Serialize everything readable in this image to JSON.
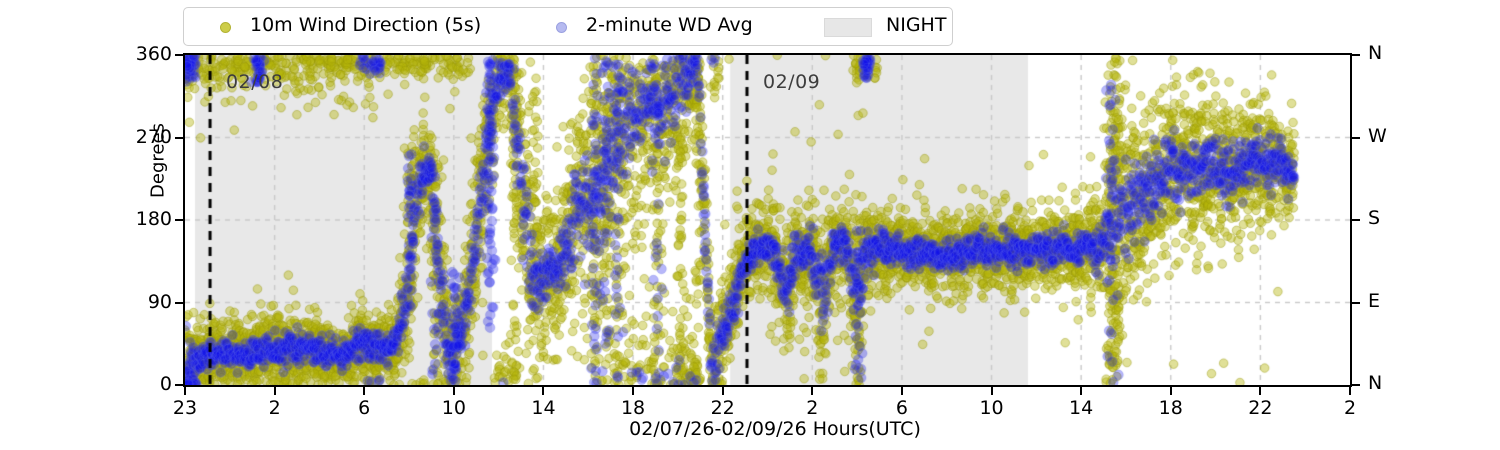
{
  "chart_data": {
    "type": "scatter",
    "xlabel": "02/07/26-02/09/26  Hours(UTC)",
    "ylabel": "Degrees",
    "ylim": [
      0,
      360
    ],
    "yticks": [
      0,
      90,
      180,
      270,
      360
    ],
    "right_axis_labels": [
      {
        "value": 360,
        "label": "N"
      },
      {
        "value": 270,
        "label": "W"
      },
      {
        "value": 180,
        "label": "S"
      },
      {
        "value": 90,
        "label": "E"
      },
      {
        "value": 0,
        "label": "N"
      }
    ],
    "xtick_labels": [
      "23",
      "2",
      "6",
      "10",
      "14",
      "18",
      "22",
      "2",
      "6",
      "10",
      "14",
      "18",
      "22",
      "2"
    ],
    "grid": true,
    "grid_color": "#c9c9c9",
    "night_color": "#e8e8e8",
    "legend": [
      {
        "label": "10m Wind Direction (5s)",
        "marker_color": "#cdcd4a",
        "type": "scatter"
      },
      {
        "label": "2-minute WD Avg",
        "marker_color": "#b6baf0",
        "type": "scatter"
      },
      {
        "label": "NIGHT",
        "patch_color": "#e7e7e7",
        "type": "patch"
      }
    ],
    "night_regions": [
      {
        "x0": 0.0086,
        "x1": 0.2635
      },
      {
        "x0": 0.468,
        "x1": 0.7236
      }
    ],
    "day_markers": [
      {
        "x": 0.0215,
        "label": "02/08"
      },
      {
        "x": 0.4824,
        "label": "02/09"
      }
    ],
    "x_end": 0.952,
    "series": [
      {
        "name": "10m Wind Direction (5s)",
        "fill": "rgba(180,180,10,0.42)",
        "edge": "rgba(150,150,8,0.45)",
        "radius": 4.3,
        "n": 6800,
        "spread_scale": 1.0,
        "outliers": true
      },
      {
        "name": "2-minute WD Avg",
        "fill": "rgba(18,18,235,0.30)",
        "edge": "rgba(95,105,230,0.32)",
        "radius": 4.8,
        "n": 2700,
        "spread_scale": 0.45,
        "outliers": false
      }
    ],
    "keyframes": [
      [
        0.0,
        12,
        38
      ],
      [
        0.006,
        25,
        22
      ],
      [
        0.02,
        32,
        16
      ],
      [
        0.05,
        35,
        18
      ],
      [
        0.08,
        40,
        20
      ],
      [
        0.11,
        38,
        18
      ],
      [
        0.135,
        32,
        16
      ],
      [
        0.15,
        45,
        20
      ],
      [
        0.165,
        40,
        18
      ],
      [
        0.18,
        42,
        18
      ],
      [
        0.19,
        90,
        45
      ],
      [
        0.198,
        200,
        40
      ],
      [
        0.205,
        235,
        22
      ],
      [
        0.212,
        235,
        25
      ],
      [
        0.218,
        120,
        70
      ],
      [
        0.226,
        35,
        28
      ],
      [
        0.238,
        55,
        30
      ],
      [
        0.248,
        140,
        55
      ],
      [
        0.258,
        260,
        50
      ],
      [
        0.268,
        330,
        30
      ],
      [
        0.278,
        345,
        22
      ],
      [
        0.287,
        240,
        80
      ],
      [
        0.297,
        120,
        45
      ],
      [
        0.31,
        115,
        35
      ],
      [
        0.325,
        140,
        45
      ],
      [
        0.34,
        200,
        70
      ],
      [
        0.355,
        210,
        85
      ],
      [
        0.368,
        270,
        75
      ],
      [
        0.38,
        295,
        70
      ],
      [
        0.395,
        310,
        60
      ],
      [
        0.41,
        295,
        75
      ],
      [
        0.425,
        330,
        50
      ],
      [
        0.44,
        350,
        32
      ],
      [
        0.452,
        15,
        35
      ],
      [
        0.462,
        55,
        30
      ],
      [
        0.472,
        100,
        28
      ],
      [
        0.482,
        135,
        24
      ],
      [
        0.492,
        152,
        20
      ],
      [
        0.505,
        150,
        20
      ],
      [
        0.515,
        100,
        40
      ],
      [
        0.525,
        148,
        25
      ],
      [
        0.538,
        142,
        28
      ],
      [
        0.548,
        90,
        45
      ],
      [
        0.556,
        150,
        22
      ],
      [
        0.568,
        153,
        20
      ],
      [
        0.576,
        90,
        65
      ],
      [
        0.584,
        148,
        30
      ],
      [
        0.595,
        150,
        22
      ],
      [
        0.62,
        146,
        20
      ],
      [
        0.65,
        143,
        20
      ],
      [
        0.68,
        148,
        20
      ],
      [
        0.71,
        145,
        20
      ],
      [
        0.74,
        147,
        20
      ],
      [
        0.77,
        150,
        22
      ],
      [
        0.79,
        155,
        30
      ],
      [
        0.797,
        190,
        90
      ],
      [
        0.805,
        185,
        55
      ],
      [
        0.82,
        205,
        48
      ],
      [
        0.84,
        225,
        45
      ],
      [
        0.86,
        238,
        42
      ],
      [
        0.88,
        240,
        40
      ],
      [
        0.9,
        235,
        38
      ],
      [
        0.92,
        245,
        34
      ],
      [
        0.94,
        240,
        28
      ],
      [
        0.952,
        228,
        22
      ]
    ],
    "streaks": [
      {
        "x": 0.063,
        "y0": 330,
        "y1": 360,
        "n": 30,
        "c": "b"
      },
      {
        "x": 0.193,
        "y0": 80,
        "y1": 255,
        "n": 55,
        "c": "both"
      },
      {
        "x": 0.214,
        "y0": 0,
        "y1": 250,
        "n": 55,
        "c": "both"
      },
      {
        "x": 0.232,
        "y0": 0,
        "y1": 130,
        "n": 35,
        "c": "b"
      },
      {
        "x": 0.262,
        "y0": 60,
        "y1": 355,
        "n": 65,
        "c": "b"
      },
      {
        "x": 0.283,
        "y0": 0,
        "y1": 360,
        "n": 55,
        "c": "o"
      },
      {
        "x": 0.3,
        "y0": 0,
        "y1": 360,
        "n": 45,
        "c": "o"
      },
      {
        "x": 0.352,
        "y0": 0,
        "y1": 360,
        "n": 75,
        "c": "both"
      },
      {
        "x": 0.362,
        "y0": 0,
        "y1": 360,
        "n": 75,
        "c": "both"
      },
      {
        "x": 0.372,
        "y0": 0,
        "y1": 360,
        "n": 75,
        "c": "both"
      },
      {
        "x": 0.405,
        "y0": 0,
        "y1": 360,
        "n": 65,
        "c": "both"
      },
      {
        "x": 0.425,
        "y0": 0,
        "y1": 360,
        "n": 55,
        "c": "o"
      },
      {
        "x": 0.44,
        "y0": 0,
        "y1": 360,
        "n": 45,
        "c": "o"
      },
      {
        "x": 0.578,
        "y0": 0,
        "y1": 175,
        "n": 55,
        "c": "both"
      },
      {
        "x": 0.585,
        "y0": 335,
        "y1": 360,
        "n": 28,
        "c": "b"
      },
      {
        "x": 0.795,
        "y0": 0,
        "y1": 360,
        "n": 85,
        "c": "both"
      },
      {
        "x": 0.801,
        "y0": 60,
        "y1": 360,
        "n": 55,
        "c": "o"
      }
    ],
    "bands": [
      {
        "x0": 0.0,
        "x1": 0.01,
        "y": 350,
        "s": 8,
        "n": 55,
        "c": "b"
      },
      {
        "x0": 0.0,
        "x1": 0.165,
        "y": 349,
        "s": 10,
        "n": 260,
        "c": "o"
      },
      {
        "x0": 0.0,
        "x1": 0.165,
        "y": 322,
        "s": 14,
        "n": 55,
        "c": "o"
      },
      {
        "x0": 0.15,
        "x1": 0.168,
        "y": 352,
        "s": 6,
        "n": 30,
        "c": "b"
      },
      {
        "x0": 0.165,
        "x1": 0.245,
        "y": 351,
        "s": 8,
        "n": 110,
        "c": "o"
      },
      {
        "x0": 0.5,
        "x1": 0.57,
        "y": 60,
        "s": 25,
        "n": 28,
        "c": "o"
      },
      {
        "x0": 0.573,
        "x1": 0.595,
        "y": 345,
        "s": 10,
        "n": 35,
        "c": "o"
      },
      {
        "x0": 0.79,
        "x1": 0.802,
        "y": 30,
        "s": 20,
        "n": 18,
        "c": "o"
      }
    ]
  }
}
